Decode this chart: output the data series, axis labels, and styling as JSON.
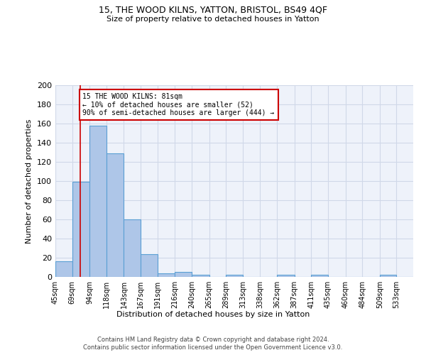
{
  "title1": "15, THE WOOD KILNS, YATTON, BRISTOL, BS49 4QF",
  "title2": "Size of property relative to detached houses in Yatton",
  "xlabel": "Distribution of detached houses by size in Yatton",
  "ylabel": "Number of detached properties",
  "bin_labels": [
    "45sqm",
    "69sqm",
    "94sqm",
    "118sqm",
    "143sqm",
    "167sqm",
    "191sqm",
    "216sqm",
    "240sqm",
    "265sqm",
    "289sqm",
    "313sqm",
    "338sqm",
    "362sqm",
    "387sqm",
    "411sqm",
    "435sqm",
    "460sqm",
    "484sqm",
    "509sqm",
    "533sqm"
  ],
  "bin_edges": [
    45,
    69,
    94,
    118,
    143,
    167,
    191,
    216,
    240,
    265,
    289,
    313,
    338,
    362,
    387,
    411,
    435,
    460,
    484,
    509,
    533
  ],
  "bar_heights": [
    16,
    99,
    158,
    129,
    60,
    24,
    4,
    5,
    2,
    0,
    2,
    0,
    0,
    2,
    0,
    2,
    0,
    0,
    0,
    2,
    0
  ],
  "bar_color": "#aec6e8",
  "bar_edge_color": "#5a9fd4",
  "grid_color": "#d0d8e8",
  "background_color": "#eef2fa",
  "annotation_text": "15 THE WOOD KILNS: 81sqm\n← 10% of detached houses are smaller (52)\n90% of semi-detached houses are larger (444) →",
  "redline_x": 81,
  "annotation_box_color": "#ffffff",
  "annotation_box_edge": "#cc0000",
  "redline_color": "#cc0000",
  "ylim": [
    0,
    200
  ],
  "yticks": [
    0,
    20,
    40,
    60,
    80,
    100,
    120,
    140,
    160,
    180,
    200
  ],
  "footer_line1": "Contains HM Land Registry data © Crown copyright and database right 2024.",
  "footer_line2": "Contains public sector information licensed under the Open Government Licence v3.0."
}
